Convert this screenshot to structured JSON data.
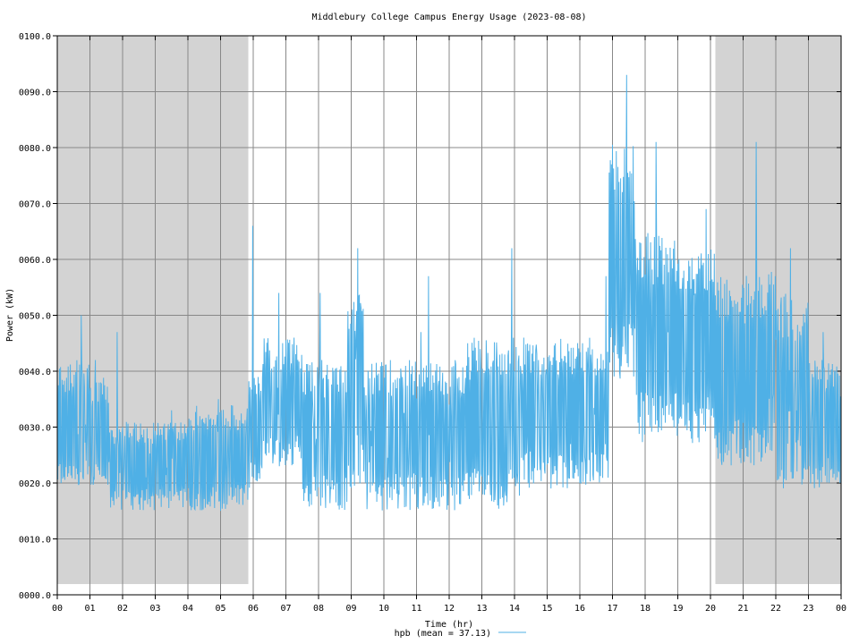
{
  "chart_data": {
    "type": "line",
    "title": "Middlebury College Campus Energy Usage (2023-08-08)",
    "xlabel": "Time (hr)",
    "ylabel": "Power (kW)",
    "xlim": [
      0,
      24
    ],
    "ylim": [
      0,
      100
    ],
    "x_ticks": [
      "00",
      "01",
      "02",
      "03",
      "04",
      "05",
      "06",
      "07",
      "08",
      "09",
      "10",
      "11",
      "12",
      "13",
      "14",
      "15",
      "16",
      "17",
      "18",
      "19",
      "20",
      "21",
      "22",
      "23",
      "00"
    ],
    "y_ticks": [
      "0000.0",
      "0010.0",
      "0020.0",
      "0030.0",
      "0040.0",
      "0050.0",
      "0060.0",
      "0070.0",
      "0080.0",
      "0090.0",
      "0100.0"
    ],
    "grid": true,
    "legend_position": "bottom-center",
    "night_shading": [
      {
        "start": 0.0,
        "end": 5.85
      },
      {
        "start": 20.15,
        "end": 24.0
      }
    ],
    "shading_color": "#d3d3d3",
    "series": [
      {
        "name": "hpb (mean = 37.13)",
        "color": "#4fb0e6",
        "sample_interval_min": 1,
        "segments": [
          {
            "start": 0.0,
            "end": 1.0,
            "low": 19,
            "high": 42,
            "peak": 50
          },
          {
            "start": 1.0,
            "end": 1.6,
            "low": 19,
            "high": 39,
            "peak": 42
          },
          {
            "start": 1.6,
            "end": 3.0,
            "low": 15,
            "high": 31,
            "peak": 47
          },
          {
            "start": 3.0,
            "end": 4.0,
            "low": 15,
            "high": 31,
            "peak": 33
          },
          {
            "start": 4.0,
            "end": 5.85,
            "low": 15,
            "high": 34,
            "peak": 35
          },
          {
            "start": 5.85,
            "end": 6.3,
            "low": 19,
            "high": 39,
            "peak": 66
          },
          {
            "start": 6.3,
            "end": 7.5,
            "low": 23,
            "high": 46,
            "peak": 54
          },
          {
            "start": 7.5,
            "end": 8.9,
            "low": 15,
            "high": 42,
            "peak": 54
          },
          {
            "start": 8.9,
            "end": 9.4,
            "low": 19,
            "high": 54,
            "peak": 62
          },
          {
            "start": 9.4,
            "end": 11.3,
            "low": 15,
            "high": 42,
            "peak": 47
          },
          {
            "start": 11.3,
            "end": 12.5,
            "low": 15,
            "high": 42,
            "peak": 57
          },
          {
            "start": 12.5,
            "end": 14.2,
            "low": 15,
            "high": 46,
            "peak": 62
          },
          {
            "start": 14.2,
            "end": 16.9,
            "low": 19,
            "high": 46,
            "peak": 57
          },
          {
            "start": 16.9,
            "end": 17.7,
            "low": 38,
            "high": 81,
            "peak": 93
          },
          {
            "start": 17.7,
            "end": 19.0,
            "low": 27,
            "high": 65,
            "peak": 81
          },
          {
            "start": 19.0,
            "end": 20.15,
            "low": 27,
            "high": 62,
            "peak": 69
          },
          {
            "start": 20.15,
            "end": 22.0,
            "low": 23,
            "high": 58,
            "peak": 81
          },
          {
            "start": 22.0,
            "end": 23.0,
            "low": 19,
            "high": 54,
            "peak": 62
          },
          {
            "start": 23.0,
            "end": 24.0,
            "low": 19,
            "high": 42,
            "peak": 47
          }
        ]
      }
    ]
  }
}
